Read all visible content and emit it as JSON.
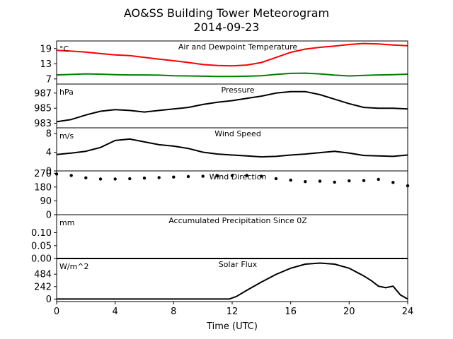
{
  "figure": {
    "title_line1": "AO&SS Building Tower Meteorogram",
    "title_line2": "2014-09-23",
    "xlabel": "Time (UTC)"
  },
  "chart_data": [
    {
      "type": "line",
      "title": "Air and Dewpoint Temperature",
      "unit_label": "°C",
      "xlim": [
        0,
        24
      ],
      "ylim": [
        5,
        22
      ],
      "yticks": [
        7,
        13,
        19
      ],
      "ytick_labels": [
        "7",
        "13",
        "19"
      ],
      "series": [
        {
          "color": "#ff0000",
          "x": [
            0,
            1,
            2,
            3,
            4,
            5,
            6,
            7,
            8,
            9,
            10,
            11,
            12,
            13,
            14,
            15,
            16,
            17,
            18,
            19,
            20,
            21,
            22,
            23,
            24
          ],
          "y": [
            18.3,
            18.0,
            17.6,
            17.0,
            16.5,
            16.2,
            15.5,
            14.8,
            14.2,
            13.5,
            12.7,
            12.3,
            12.2,
            12.5,
            13.5,
            15.5,
            17.5,
            18.8,
            19.5,
            20.0,
            20.6,
            21.0,
            20.8,
            20.4,
            20.1
          ]
        },
        {
          "color": "#008000",
          "x": [
            0,
            1,
            2,
            3,
            4,
            5,
            6,
            7,
            8,
            9,
            10,
            11,
            12,
            13,
            14,
            15,
            16,
            17,
            18,
            19,
            20,
            21,
            22,
            23,
            24
          ],
          "y": [
            8.6,
            8.8,
            9.0,
            8.9,
            8.7,
            8.6,
            8.6,
            8.5,
            8.3,
            8.2,
            8.1,
            8.0,
            8.0,
            8.1,
            8.3,
            8.8,
            9.2,
            9.3,
            9.0,
            8.5,
            8.2,
            8.4,
            8.6,
            8.7,
            8.9
          ]
        }
      ]
    },
    {
      "type": "line",
      "title": "Pressure",
      "unit_label": "hPa",
      "xlim": [
        0,
        24
      ],
      "ylim": [
        982.4,
        988.2
      ],
      "yticks": [
        983,
        985,
        987
      ],
      "ytick_labels": [
        "983",
        "985",
        "987"
      ],
      "series": [
        {
          "color": "#000000",
          "x": [
            0,
            1,
            2,
            3,
            4,
            5,
            6,
            7,
            8,
            9,
            10,
            11,
            12,
            13,
            14,
            15,
            16,
            17,
            18,
            19,
            20,
            21,
            22,
            23,
            24
          ],
          "y": [
            983.2,
            983.5,
            984.1,
            984.6,
            984.8,
            984.7,
            984.5,
            984.7,
            984.9,
            985.1,
            985.5,
            985.8,
            986.0,
            986.3,
            986.6,
            987.0,
            987.2,
            987.2,
            986.8,
            986.2,
            985.6,
            985.1,
            985.0,
            985.0,
            984.9
          ]
        }
      ]
    },
    {
      "type": "line",
      "title": "Wind Speed",
      "unit_label": "m/s",
      "xlim": [
        0,
        24
      ],
      "ylim": [
        0,
        9.2
      ],
      "yticks": [
        0,
        4,
        8
      ],
      "ytick_labels": [
        "0",
        "4",
        "8"
      ],
      "series": [
        {
          "color": "#000000",
          "x": [
            0,
            1,
            2,
            3,
            4,
            5,
            6,
            7,
            8,
            9,
            10,
            11,
            12,
            13,
            14,
            15,
            16,
            17,
            18,
            19,
            20,
            21,
            22,
            23,
            24
          ],
          "y": [
            3.5,
            3.8,
            4.2,
            5.0,
            6.5,
            6.8,
            6.2,
            5.6,
            5.3,
            4.8,
            4.0,
            3.6,
            3.4,
            3.2,
            3.0,
            3.1,
            3.4,
            3.6,
            3.9,
            4.2,
            3.8,
            3.3,
            3.2,
            3.1,
            3.4
          ]
        }
      ]
    },
    {
      "type": "scatter",
      "title": "Wind Direction",
      "unit_label": "",
      "xlim": [
        0,
        24
      ],
      "ylim": [
        0,
        285
      ],
      "yticks": [
        0,
        90,
        180,
        270
      ],
      "ytick_labels": [
        "0",
        "90",
        "180",
        "270"
      ],
      "series": [
        {
          "color": "#000000",
          "x": [
            0,
            1,
            2,
            3,
            4,
            5,
            6,
            7,
            8,
            9,
            10,
            11,
            12,
            13,
            14,
            15,
            16,
            17,
            18,
            19,
            20,
            21,
            22,
            23,
            24
          ],
          "y": [
            265,
            255,
            240,
            232,
            232,
            234,
            238,
            242,
            245,
            248,
            250,
            252,
            254,
            256,
            250,
            235,
            225,
            215,
            218,
            212,
            220,
            222,
            230,
            210,
            188
          ]
        }
      ]
    },
    {
      "type": "line",
      "title": "Accumulated Precipitation Since 0Z",
      "unit_label": "mm",
      "xlim": [
        0,
        24
      ],
      "ylim": [
        0,
        0.17
      ],
      "yticks": [
        0,
        0.05,
        0.1
      ],
      "ytick_labels": [
        "0.00",
        "0.05",
        "0.10"
      ],
      "series": [
        {
          "color": "#000000",
          "x": [
            0,
            24
          ],
          "y": [
            0,
            0
          ]
        }
      ]
    },
    {
      "type": "line",
      "title": "Solar Flux",
      "unit_label": "W/m^2",
      "xlim": [
        0,
        24
      ],
      "ylim": [
        -50,
        790
      ],
      "yticks": [
        0,
        242,
        484
      ],
      "ytick_labels": [
        "0",
        "242",
        "484"
      ],
      "series": [
        {
          "color": "#000000",
          "x": [
            0,
            4,
            8,
            11.8,
            12.3,
            13,
            14,
            15,
            16,
            17,
            18,
            19,
            20,
            21,
            21.5,
            22,
            22.5,
            23,
            23.5,
            24
          ],
          "y": [
            0,
            0,
            0,
            0,
            50,
            170,
            330,
            480,
            600,
            680,
            700,
            680,
            600,
            450,
            360,
            250,
            220,
            250,
            80,
            0
          ]
        }
      ]
    }
  ],
  "x_axis": {
    "ticks": [
      0,
      4,
      8,
      12,
      16,
      20,
      24
    ],
    "tick_labels": [
      "0",
      "4",
      "8",
      "12",
      "16",
      "20",
      "24"
    ]
  }
}
